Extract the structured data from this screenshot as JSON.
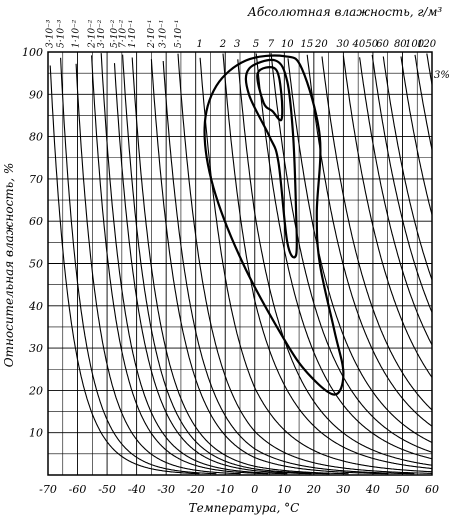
{
  "chart_data": {
    "type": "nomogram",
    "title": "Абсолютная влажность, г/м³",
    "xlabel": "Температура, °С",
    "ylabel": "Относительная влажность, %",
    "xlim": [
      -70,
      60
    ],
    "ylim": [
      0,
      100
    ],
    "x_ticks": [
      "-70",
      "-60",
      "-50",
      "-40",
      "-30",
      "-20",
      "-10",
      "0",
      "10",
      "20",
      "30",
      "40",
      "50",
      "60"
    ],
    "y_ticks": [
      "10",
      "20",
      "30",
      "40",
      "50",
      "60",
      "70",
      "80",
      "90",
      "100"
    ],
    "abs_humidity_labels": [
      "3·10⁻³",
      "5·10⁻³",
      "1·10⁻²",
      "2·10⁻²",
      "3·10⁻²",
      "5·10⁻²",
      "7·10⁻²",
      "1·10⁻¹",
      "2·10⁻¹",
      "3·10⁻¹",
      "5·10⁻¹",
      "1",
      "2",
      "3",
      "5",
      "7",
      "10",
      "15",
      "20",
      "30",
      "40",
      "50",
      "60",
      "80",
      "100",
      "120"
    ],
    "abs_humidity_values": [
      0.003,
      0.005,
      0.01,
      0.02,
      0.03,
      0.05,
      0.07,
      0.1,
      0.2,
      0.3,
      0.5,
      1,
      2,
      3,
      5,
      7,
      10,
      15,
      20,
      30,
      40,
      50,
      60,
      80,
      100,
      120
    ],
    "grid": true,
    "contour_label": "3%",
    "contours": [
      {
        "name": "outer",
        "points": [
          [
            -3,
            98
          ],
          [
            10,
            99
          ],
          [
            16,
            96
          ],
          [
            22,
            80
          ],
          [
            21,
            62
          ],
          [
            22,
            50
          ],
          [
            27,
            34
          ],
          [
            30,
            24
          ],
          [
            27,
            19
          ],
          [
            18,
            24
          ],
          [
            10,
            32
          ],
          [
            -4,
            50
          ],
          [
            -14,
            68
          ],
          [
            -17,
            82
          ],
          [
            -13,
            92
          ],
          [
            -3,
            98
          ]
        ]
      },
      {
        "name": "middle",
        "points": [
          [
            -2,
            96
          ],
          [
            7,
            98
          ],
          [
            11,
            93
          ],
          [
            13,
            80
          ],
          [
            14,
            62
          ],
          [
            14,
            52
          ],
          [
            11,
            55
          ],
          [
            8,
            74
          ],
          [
            5,
            80
          ],
          [
            -2,
            90
          ],
          [
            -2,
            96
          ]
        ]
      },
      {
        "name": "inner",
        "points": [
          [
            1,
            95
          ],
          [
            7,
            96
          ],
          [
            9,
            90
          ],
          [
            9,
            84
          ],
          [
            6,
            86
          ],
          [
            3,
            88
          ],
          [
            1,
            95
          ]
        ]
      }
    ]
  }
}
